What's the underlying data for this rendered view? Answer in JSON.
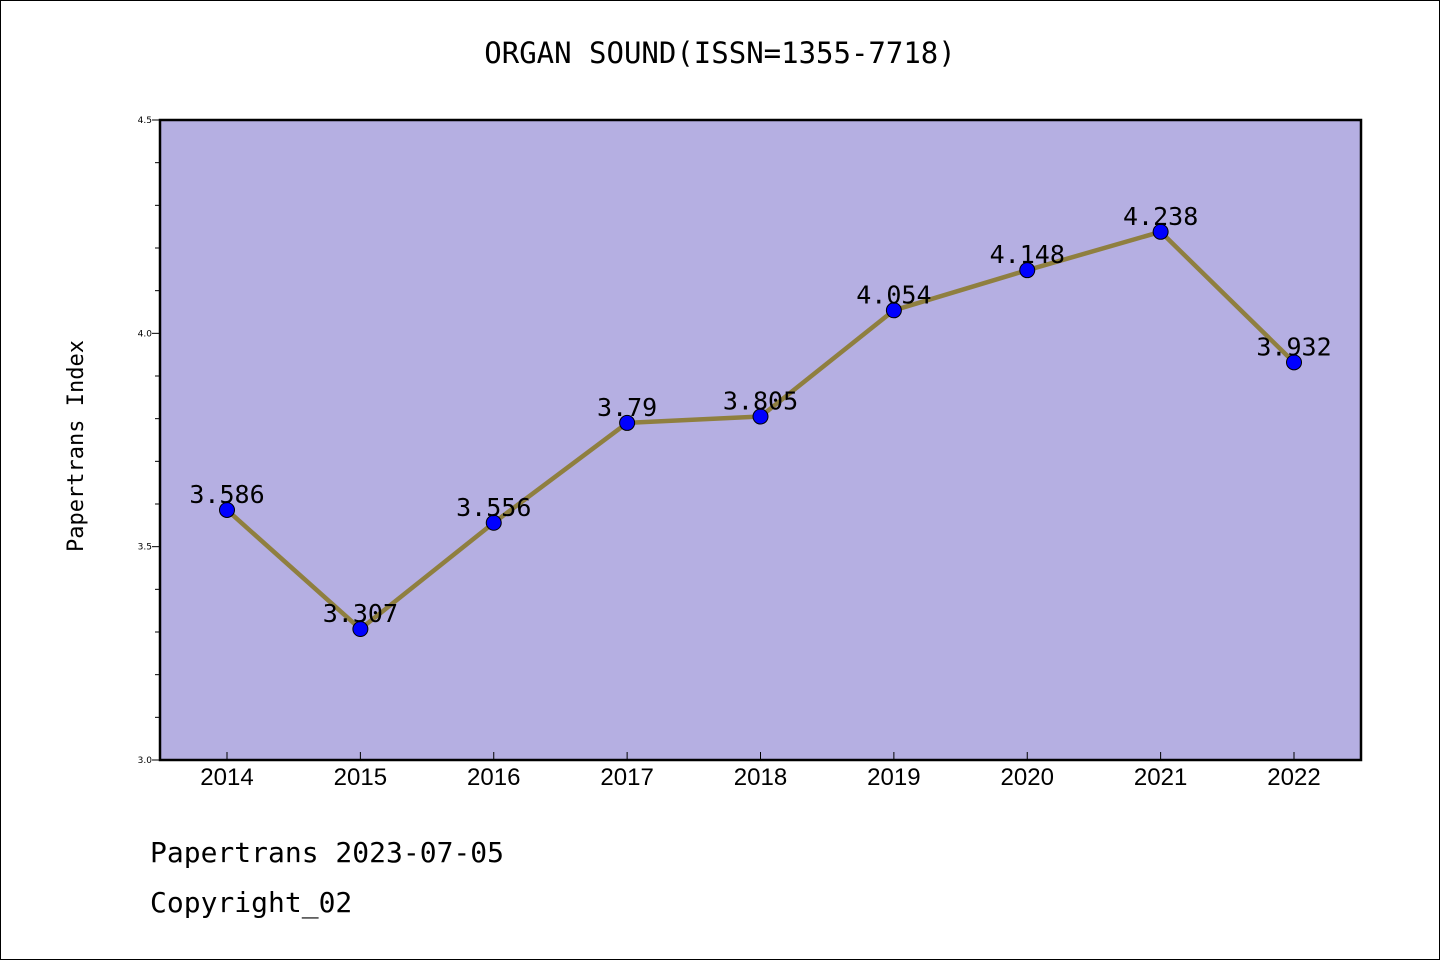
{
  "title": "ORGAN SOUND(ISSN=1355-7718)",
  "footer": {
    "line1": "Papertrans 2023-07-05",
    "line2": "Copyright_02"
  },
  "colors": {
    "plot_background": "#b5afe2",
    "line": "#8f7f3f",
    "marker": "#0000ff"
  },
  "chart_data": {
    "type": "line",
    "x": [
      "2014",
      "2015",
      "2016",
      "2017",
      "2018",
      "2019",
      "2020",
      "2021",
      "2022"
    ],
    "series": [
      {
        "values": [
          3.586,
          3.307,
          3.556,
          3.79,
          3.805,
          4.054,
          4.148,
          4.238,
          3.932
        ],
        "labels": [
          "3.586",
          "3.307",
          "3.556",
          "3.79",
          "3.805",
          "4.054",
          "4.148",
          "4.238",
          "3.932"
        ]
      }
    ],
    "ylabel": "Papertrans Index",
    "xlabel": "",
    "ylim": [
      3.0,
      4.5
    ],
    "yticks": [
      "3.0",
      "3.5",
      "4.0",
      "4.5"
    ],
    "grid": false
  }
}
